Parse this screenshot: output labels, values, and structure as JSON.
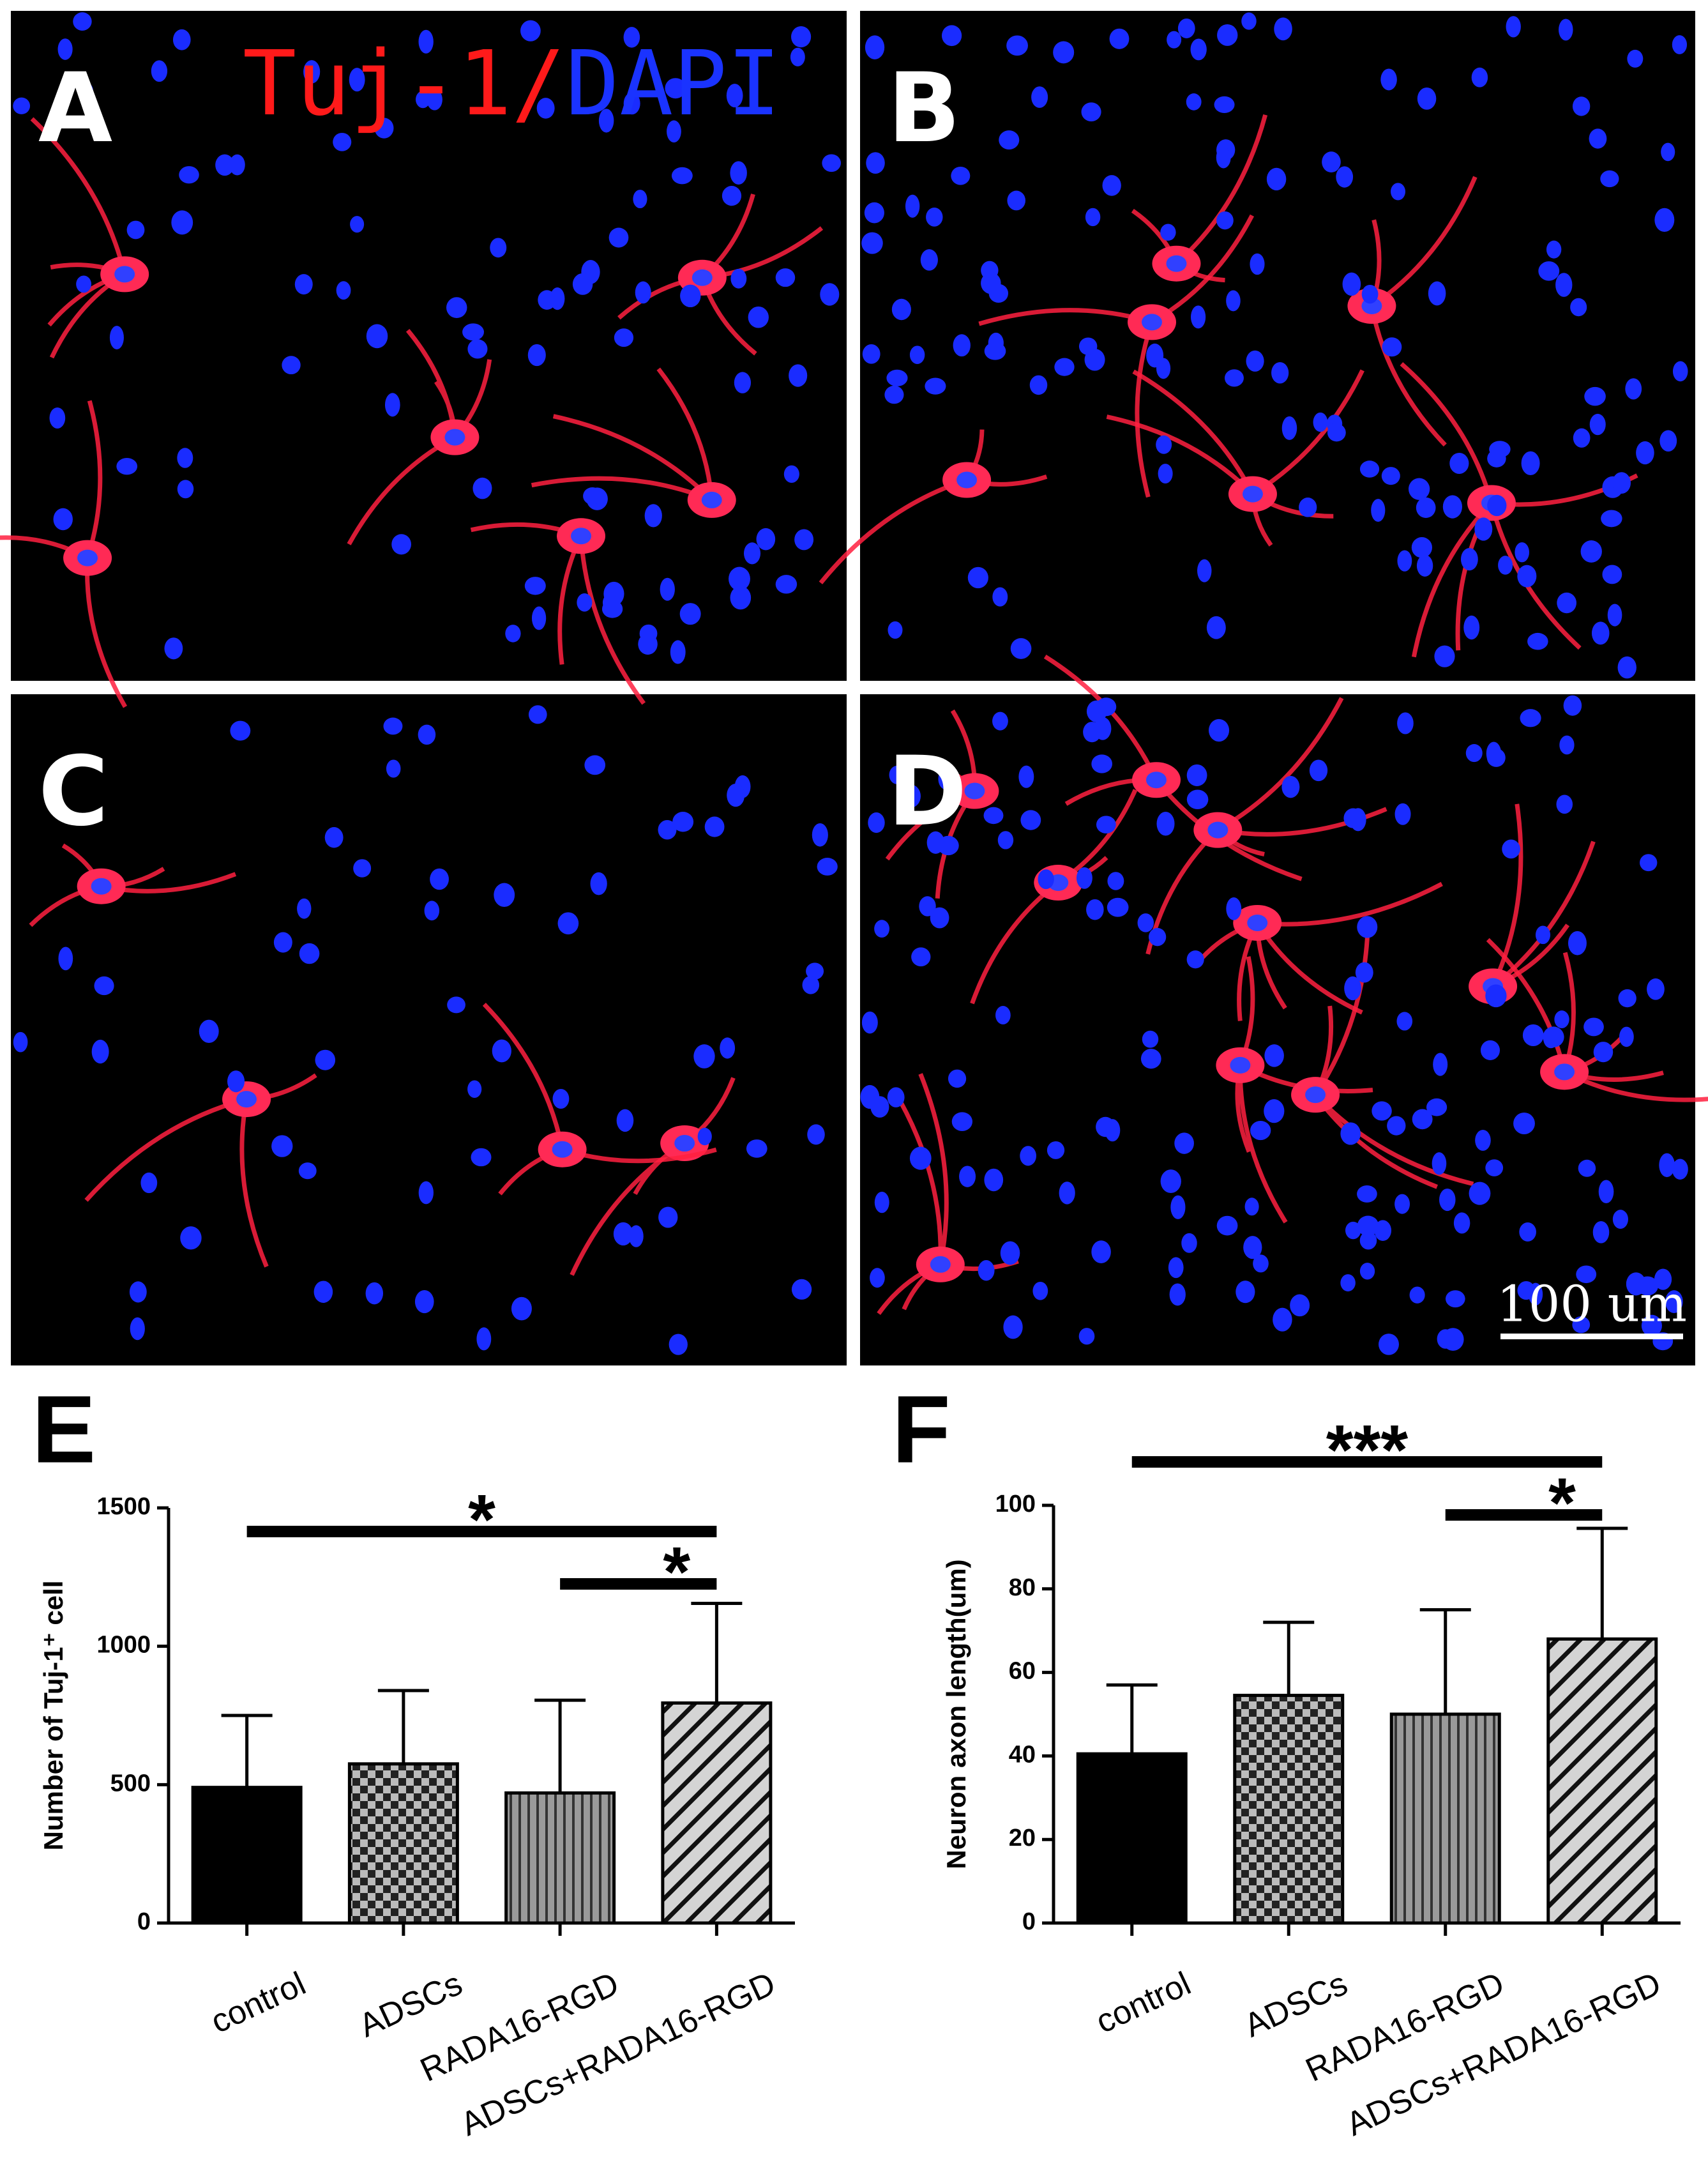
{
  "stain": {
    "red": "Tuj-1/",
    "blue": "DAPI"
  },
  "panels": [
    {
      "label": "A"
    },
    {
      "label": "B"
    },
    {
      "label": "C"
    },
    {
      "label": "D"
    }
  ],
  "scale_bar": "100 um",
  "chart_data": [
    {
      "type": "bar",
      "panel_label": "E",
      "ylabel": "Number of Tuj-1⁺ cell",
      "categories": [
        "control",
        "ADSCs",
        "RADA16-RGD",
        "ADSCs+RADA16-RGD"
      ],
      "values": [
        490,
        575,
        470,
        795
      ],
      "errors": [
        260,
        265,
        335,
        360
      ],
      "patterns": [
        "solid",
        "checker",
        "vertical",
        "diagonal"
      ],
      "ylim": [
        0,
        1500
      ],
      "yticks": [
        0,
        500,
        1000,
        1500
      ],
      "annotations": [
        {
          "text": "*",
          "between": [
            0,
            3
          ]
        },
        {
          "text": "*",
          "between": [
            2,
            3
          ]
        }
      ]
    },
    {
      "type": "bar",
      "panel_label": "F",
      "ylabel": "Neuron axon length(um)",
      "categories": [
        "control",
        "ADSCs",
        "RADA16-RGD",
        "ADSCs+RADA16-RGD"
      ],
      "values": [
        40.5,
        54.5,
        50,
        68
      ],
      "errors": [
        16.5,
        17.5,
        25,
        26.5
      ],
      "patterns": [
        "solid",
        "checker",
        "vertical",
        "diagonal"
      ],
      "ylim": [
        0,
        100
      ],
      "yticks": [
        0,
        20,
        40,
        60,
        80,
        100
      ],
      "annotations": [
        {
          "text": "***",
          "between": [
            0,
            3
          ]
        },
        {
          "text": "*",
          "between": [
            2,
            3
          ]
        }
      ]
    }
  ]
}
